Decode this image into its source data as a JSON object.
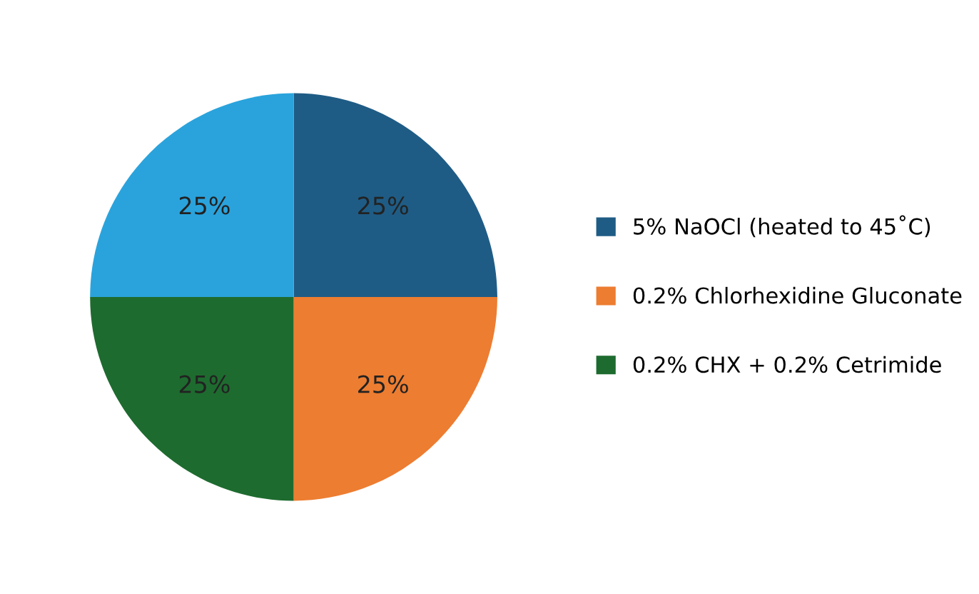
{
  "chart_data": {
    "type": "pie",
    "categories": [
      "5% NaOCl (heated to 45˚C)",
      "0.2% Chlorhexidine Gluconate",
      "0.2% CHX + 0.2% Cetrimide",
      null
    ],
    "values": [
      25,
      25,
      25,
      25
    ],
    "value_labels": [
      "25%",
      "25%",
      "25%",
      "25%"
    ],
    "colors": [
      "#1f5c85",
      "#ed7d31",
      "#1e6b2f",
      "#2aa3dc"
    ],
    "legend": "right"
  }
}
